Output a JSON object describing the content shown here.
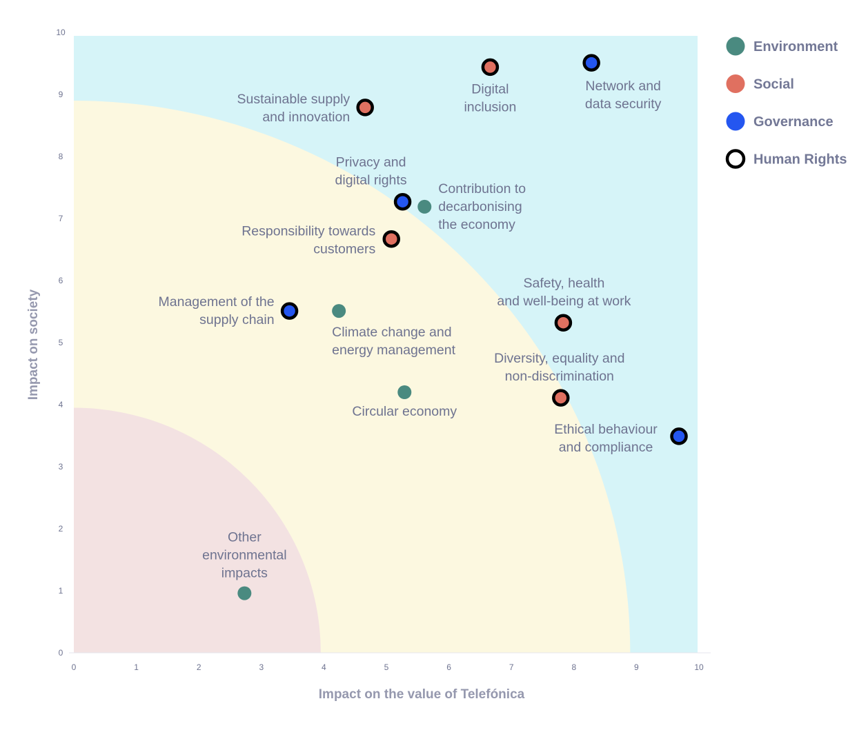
{
  "chart_data": {
    "type": "scatter",
    "xlabel": "Impact on the value of Telefónica",
    "ylabel": "Impact on society",
    "xlim": [
      0,
      10
    ],
    "ylim": [
      0,
      10
    ],
    "xticks": [
      "0",
      "1",
      "2",
      "3",
      "4",
      "5",
      "6",
      "7",
      "8",
      "9",
      "10"
    ],
    "yticks": [
      "0",
      "1",
      "2",
      "3",
      "4",
      "5",
      "6",
      "7",
      "8",
      "9",
      "10"
    ],
    "grid": false,
    "legend_placement": "right",
    "regions": [
      {
        "shape": "rectangle",
        "color": "#d6f4f8"
      },
      {
        "shape": "quarter-circle",
        "radius": 8.9,
        "color": "#fcf8e0"
      },
      {
        "shape": "quarter-circle",
        "radius": 3.95,
        "color": "#f3e2e2"
      }
    ],
    "legend": [
      {
        "name": "Environment",
        "color": "#4a8a80",
        "style": "filled"
      },
      {
        "name": "Social",
        "color": "#e07060",
        "style": "filled"
      },
      {
        "name": "Governance",
        "color": "#2456f0",
        "style": "filled"
      },
      {
        "name": "Human Rights",
        "color": "#000000",
        "style": "ring"
      }
    ],
    "points": [
      {
        "label": [
          "Sustainable supply",
          "and innovation"
        ],
        "x": 4.66,
        "y": 8.79,
        "category": "Social",
        "human_rights": true
      },
      {
        "label": [
          "Digital",
          "inclusion"
        ],
        "x": 6.66,
        "y": 9.44,
        "category": "Social",
        "human_rights": true
      },
      {
        "label": [
          "Network and",
          "data security"
        ],
        "x": 8.28,
        "y": 9.51,
        "category": "Governance",
        "human_rights": true
      },
      {
        "label": [
          "Privacy and",
          "digital rights"
        ],
        "x": 5.26,
        "y": 7.27,
        "category": "Governance",
        "human_rights": true
      },
      {
        "label": [
          "Contribution to",
          "decarbonising",
          "the economy"
        ],
        "x": 5.61,
        "y": 7.19,
        "category": "Environment",
        "human_rights": false
      },
      {
        "label": [
          "Responsibility towards",
          "customers"
        ],
        "x": 5.08,
        "y": 6.67,
        "category": "Social",
        "human_rights": true
      },
      {
        "label": [
          "Management of the",
          "supply chain"
        ],
        "x": 3.45,
        "y": 5.51,
        "category": "Governance",
        "human_rights": true
      },
      {
        "label": [
          "Climate change and",
          "energy management"
        ],
        "x": 4.24,
        "y": 5.51,
        "category": "Environment",
        "human_rights": false
      },
      {
        "label": [
          "Safety, health",
          "and well-being at work"
        ],
        "x": 7.83,
        "y": 5.32,
        "category": "Social",
        "human_rights": true
      },
      {
        "label": [
          "Circular economy"
        ],
        "x": 5.29,
        "y": 4.2,
        "category": "Environment",
        "human_rights": false
      },
      {
        "label": [
          "Diversity, equality and",
          "non-discrimination"
        ],
        "x": 7.79,
        "y": 4.11,
        "category": "Social",
        "human_rights": true
      },
      {
        "label": [
          "Ethical behaviour",
          "and compliance"
        ],
        "x": 9.68,
        "y": 3.49,
        "category": "Governance",
        "human_rights": true
      },
      {
        "label": [
          "Other",
          "environmental",
          "impacts"
        ],
        "x": 2.73,
        "y": 0.96,
        "category": "Environment",
        "human_rights": false
      }
    ]
  }
}
